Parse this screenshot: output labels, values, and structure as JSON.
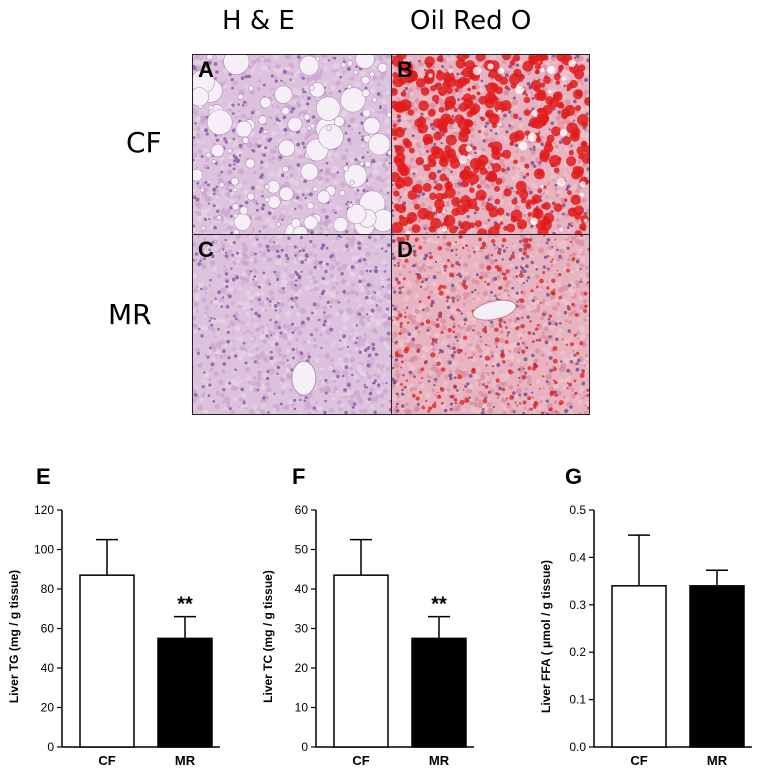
{
  "histology": {
    "columns": [
      "H & E",
      "Oil Red O"
    ],
    "rows": [
      "CF",
      "MR"
    ],
    "panels": [
      {
        "letter": "A",
        "stain": "he",
        "condition": "fatty"
      },
      {
        "letter": "B",
        "stain": "oro",
        "condition": "fatty"
      },
      {
        "letter": "C",
        "stain": "he",
        "condition": "normal"
      },
      {
        "letter": "D",
        "stain": "oro",
        "condition": "normal"
      }
    ],
    "colors": {
      "he_tissue": "#dcc2dc",
      "he_nuclei": "#8a5fa8",
      "oro_tissue": "#e7b3c0",
      "oro_lipid": "#e21b1b",
      "vacuole": "#f4f0f6"
    }
  },
  "chart_data": [
    {
      "type": "bar",
      "panel": "E",
      "categories": [
        "CF",
        "MR"
      ],
      "values": [
        87,
        55
      ],
      "errors": [
        18,
        11
      ],
      "significance": [
        "",
        "**"
      ],
      "ylabel": "Liver TG (mg / g tissue)",
      "ylim": [
        0,
        120
      ],
      "yticks": [
        0,
        20,
        40,
        60,
        80,
        100,
        120
      ],
      "ytick_labels": [
        "0",
        "20",
        "40",
        "60",
        "80",
        "100",
        "120"
      ],
      "colors": [
        "#ffffff",
        "#000000"
      ]
    },
    {
      "type": "bar",
      "panel": "F",
      "categories": [
        "CF",
        "MR"
      ],
      "values": [
        43.5,
        27.5
      ],
      "errors": [
        9,
        5.5
      ],
      "significance": [
        "",
        "**"
      ],
      "ylabel": "Liver TC (mg / g tissue)",
      "ylim": [
        0,
        60
      ],
      "yticks": [
        0,
        10,
        20,
        30,
        40,
        50,
        60
      ],
      "ytick_labels": [
        "0",
        "10",
        "20",
        "30",
        "40",
        "50",
        "60"
      ],
      "colors": [
        "#ffffff",
        "#000000"
      ]
    },
    {
      "type": "bar",
      "panel": "G",
      "categories": [
        "CF",
        "MR"
      ],
      "values": [
        0.34,
        0.34
      ],
      "errors": [
        0.107,
        0.033
      ],
      "significance": [
        "",
        ""
      ],
      "ylabel": "Liver FFA ( μmol / g tissue)",
      "ylim": [
        0,
        0.5
      ],
      "yticks": [
        0,
        0.1,
        0.2,
        0.3,
        0.4,
        0.5
      ],
      "ytick_labels": [
        "0.0",
        "0.1",
        "0.2",
        "0.3",
        "0.4",
        "0.5"
      ],
      "colors": [
        "#ffffff",
        "#000000"
      ]
    }
  ]
}
